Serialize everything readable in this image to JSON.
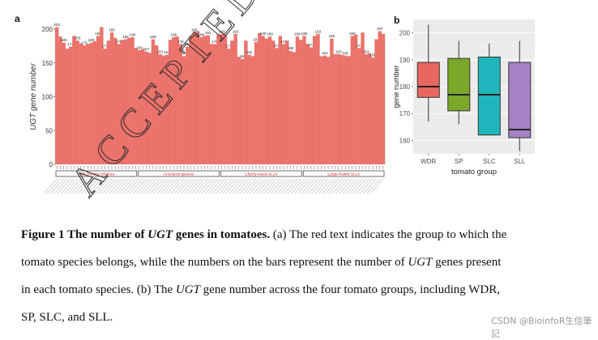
{
  "figure": {
    "panel_a_label": "a",
    "panel_b_label": "b",
    "overlay_text": "ACCEPTED",
    "caption_lines": [
      {
        "bold": "Figure 1 The number of ",
        "boldItalic": "UGT",
        "bold2": " genes in tomatoes.",
        "text": " (a) The red text indicates the group to which the"
      },
      {
        "text1": "tomato species belongs, while the numbers on the bars represent the number of ",
        "ital": "UGT",
        "text2": " genes present"
      },
      {
        "text1": "in each tomato species. (b) The ",
        "ital": "UGT",
        "text2": " gene number across the four tomato groups, including WDR,"
      },
      {
        "text1": "SP, SLC, and SLL."
      }
    ],
    "watermark": "CSDN @BioinfoR生信筆記"
  },
  "chart_data": [
    {
      "type": "bar",
      "ylabel": "UGT gene number",
      "ylim": [
        0,
        200
      ],
      "yticks": [
        0,
        50,
        100,
        150,
        200
      ],
      "bar_color": "#eb736b",
      "values": [
        203,
        189,
        180,
        171,
        174,
        190,
        183,
        179,
        176,
        178,
        180,
        182,
        190,
        203,
        171,
        183,
        195,
        187,
        178,
        184,
        185,
        187,
        188,
        172,
        169,
        170,
        167,
        165,
        185,
        176,
        163,
        161,
        162,
        184,
        188,
        189,
        178,
        160,
        174,
        190,
        195,
        197,
        188,
        190,
        191,
        178,
        178,
        192,
        193,
        192,
        171,
        183,
        193,
        159,
        156,
        183,
        162,
        160,
        181,
        194,
        190,
        186,
        189,
        183,
        172,
        190,
        178,
        183,
        168,
        166,
        189,
        184,
        190,
        178,
        173,
        190,
        193,
        160,
        161,
        159,
        186,
        163,
        163,
        162,
        161,
        160,
        190,
        192,
        172,
        195,
        163,
        164,
        158,
        185,
        197,
        193
      ],
      "group_labels": [
        "Wild Tomato relatives",
        "Ancestral species",
        "Cherry-sized SLCs",
        "Large-fruited SLLs"
      ],
      "group_label_color": "#d7191c"
    },
    {
      "type": "box",
      "xlabel": "tomato group",
      "ylabel": "gene number",
      "ylim": [
        155,
        205
      ],
      "yticks": [
        160,
        170,
        180,
        190,
        200
      ],
      "grid": true,
      "categories": [
        "WDR",
        "SP",
        "SLC",
        "SLL"
      ],
      "colors": [
        "#e8675e",
        "#7ca82a",
        "#1fb6bd",
        "#a682c6"
      ],
      "boxes": [
        {
          "min": 167,
          "q1": 176,
          "median": 180,
          "q3": 189,
          "max": 203
        },
        {
          "min": 166,
          "q1": 171,
          "median": 177,
          "q3": 190.5,
          "max": 197
        },
        {
          "min": 162,
          "q1": 162,
          "median": 177,
          "q3": 191,
          "max": 196
        },
        {
          "min": 156,
          "q1": 161,
          "median": 164,
          "q3": 189,
          "max": 197
        }
      ]
    }
  ]
}
